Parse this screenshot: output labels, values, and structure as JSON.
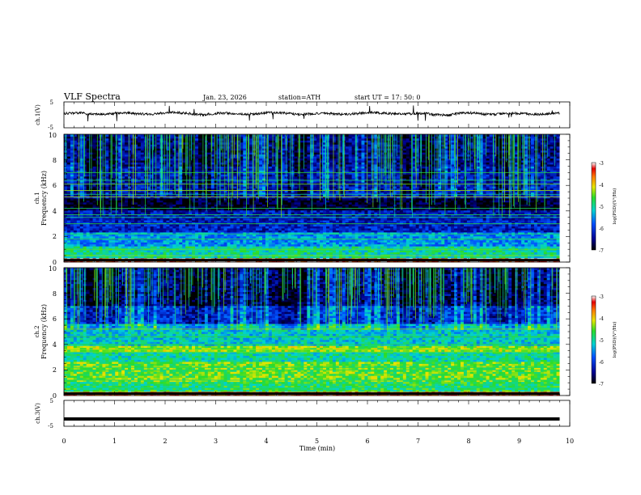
{
  "header": {
    "title": "VLF  Spectra",
    "date": "Jan. 23, 2026",
    "station": "station=ATH",
    "start": "start  UT  =   17: 50: 0"
  },
  "chart_data": [
    {
      "type": "line",
      "panel": "ch1-waveform",
      "ylabel": "ch.1(V)",
      "ylim": [
        -5,
        5
      ],
      "yticks": [
        "5",
        "-5"
      ],
      "baseline": 0.5,
      "x_range_min": [
        0,
        9.8
      ]
    },
    {
      "type": "heatmap",
      "panel": "ch1-spectrogram",
      "ylabel_top": "ch.1",
      "ylabel": "Frequency (kHz)",
      "ylim": [
        0,
        10
      ],
      "yticks": [
        "0",
        "2",
        "4",
        "6",
        "8",
        "10"
      ],
      "x_range_min": [
        0,
        9.8
      ],
      "colorbar": {
        "ticks": [
          "-3",
          "-4",
          "-5",
          "-6",
          "-7"
        ],
        "label": "log(PSD)(V²/Hz)",
        "range": [
          -7,
          -3
        ]
      },
      "bands": [
        {
          "f": [
            0.0,
            0.3
          ],
          "level": -3.3
        },
        {
          "f": [
            0.3,
            1.2
          ],
          "level": -5.0
        },
        {
          "f": [
            1.2,
            2.2
          ],
          "level": -5.5
        },
        {
          "f": [
            2.2,
            3.2
          ],
          "level": -6.2
        },
        {
          "f": [
            3.2,
            4.0
          ],
          "level": -6.3
        },
        {
          "f": [
            4.0,
            5.0
          ],
          "level": -6.9
        },
        {
          "f": [
            5.0,
            7.5
          ],
          "level": -6.3
        },
        {
          "f": [
            7.5,
            10.0
          ],
          "level": -6.5
        }
      ],
      "lines_khz": [
        0.5,
        1.0,
        1.8,
        2.2,
        3.0,
        3.5,
        3.7,
        4.2,
        5.1,
        5.3,
        5.6,
        6.1,
        6.4,
        7.0
      ],
      "burst_windows_min": [
        [
          0.4,
          1.0
        ],
        [
          2.3,
          3.0
        ],
        [
          4.2,
          4.8
        ],
        [
          6.6,
          7.3
        ],
        [
          8.4,
          9.0
        ]
      ]
    },
    {
      "type": "heatmap",
      "panel": "ch2-spectrogram",
      "ylabel_top": "ch.2",
      "ylabel": "Frequency (kHz)",
      "ylim": [
        0,
        10
      ],
      "yticks": [
        "0",
        "2",
        "4",
        "6",
        "8",
        "10"
      ],
      "x_range_min": [
        0,
        9.8
      ],
      "colorbar": {
        "ticks": [
          "-3",
          "-4",
          "-5",
          "-6",
          "-7"
        ],
        "label": "log(PSD)(V²/Hz)",
        "range": [
          -7,
          -3
        ]
      },
      "bands": [
        {
          "f": [
            0.0,
            0.3
          ],
          "level": -3.5
        },
        {
          "f": [
            0.3,
            1.0
          ],
          "level": -4.8
        },
        {
          "f": [
            1.0,
            2.6
          ],
          "level": -4.5
        },
        {
          "f": [
            2.6,
            3.3
          ],
          "level": -5.0
        },
        {
          "f": [
            3.3,
            3.8
          ],
          "level": -4.4
        },
        {
          "f": [
            3.8,
            5.5
          ],
          "level": -5.2
        },
        {
          "f": [
            5.5,
            7.0
          ],
          "level": -6.0
        },
        {
          "f": [
            7.0,
            10.0
          ],
          "level": -6.6
        }
      ],
      "lines_khz": [
        0.6,
        1.2,
        2.0,
        2.2,
        3.4,
        3.6,
        4.0,
        4.6,
        5.2
      ],
      "burst_windows_min": [
        [
          0.4,
          1.0
        ],
        [
          2.3,
          3.0
        ],
        [
          4.2,
          4.8
        ],
        [
          6.6,
          7.3
        ],
        [
          8.4,
          9.0
        ]
      ]
    },
    {
      "type": "line",
      "panel": "ch3-waveform",
      "ylabel": "ch.3(V)",
      "ylim": [
        -5,
        5
      ],
      "yticks": [
        "5",
        "-5"
      ],
      "baseline": -2.2,
      "x_range_min": [
        0,
        9.8
      ]
    }
  ],
  "xaxis": {
    "label": "Time  (min)",
    "xlim": [
      0,
      10
    ],
    "ticks": [
      "0",
      "1",
      "2",
      "3",
      "4",
      "5",
      "6",
      "7",
      "8",
      "9",
      "10"
    ]
  }
}
